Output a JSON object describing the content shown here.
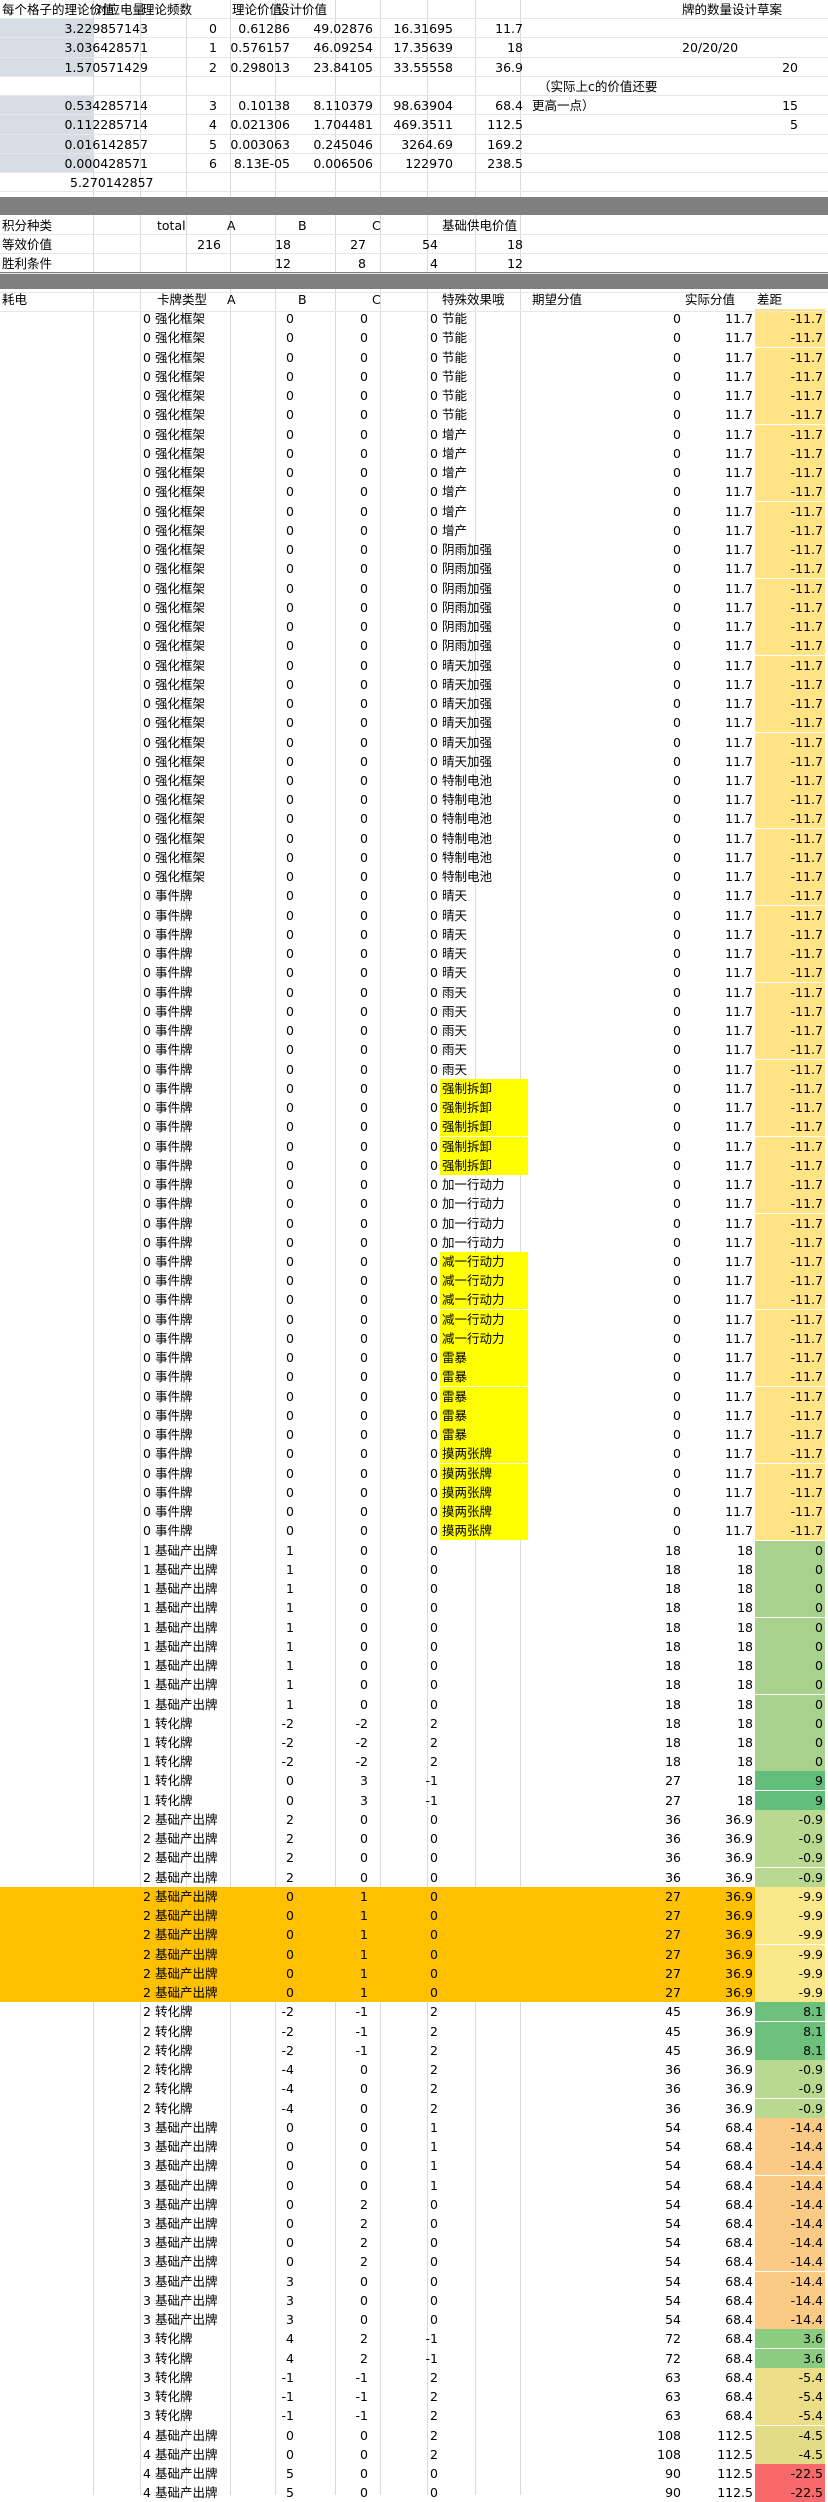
{
  "top": {
    "headers": [
      "每个格子的理论价值",
      "对应电量",
      "理论频数",
      "",
      "理论价值",
      "设计价值",
      "",
      "",
      "",
      "牌的数量设计草案"
    ],
    "rows": [
      [
        "3.229857143",
        "0",
        "0.61286",
        "49.02876",
        "16.31695",
        "11.7",
        "",
        "",
        "",
        ""
      ],
      [
        "3.036428571",
        "1",
        "0.576157",
        "46.09254",
        "17.35639",
        "18",
        "",
        "",
        "20/20/20",
        ""
      ],
      [
        "1.570571429",
        "2",
        "0.298013",
        "23.84105",
        "33.55558",
        "36.9",
        "",
        "",
        "",
        "20"
      ],
      [
        "",
        "",
        "",
        "",
        "",
        "",
        "",
        "",
        "",
        ""
      ],
      [
        "0.534285714",
        "3",
        "0.10138",
        "8.110379",
        "98.63904",
        "68.4",
        "",
        "",
        "",
        "15"
      ],
      [
        "0.112285714",
        "4",
        "0.021306",
        "1.704481",
        "469.3511",
        "112.5",
        "",
        "",
        "",
        "5"
      ],
      [
        "0.016142857",
        "5",
        "0.003063",
        "0.245046",
        "3264.69",
        "169.2",
        "",
        "",
        "",
        ""
      ],
      [
        "0.000428571",
        "6",
        "8.13E-05",
        "0.006506",
        "122970",
        "238.5",
        "",
        "",
        "",
        ""
      ],
      [
        "5.270142857",
        "",
        "",
        "",
        "",
        "",
        "",
        "",
        "",
        ""
      ]
    ],
    "note_line1": "（实际上c的价值还要",
    "note_line2": "更高一点）"
  },
  "mid": {
    "rows": [
      [
        "积分种类",
        "total",
        "A",
        "",
        "B",
        "C",
        "基础供电价值"
      ],
      [
        "等效价值",
        "216",
        "18",
        "",
        "27",
        "54",
        "18"
      ],
      [
        "胜利条件",
        "",
        "12",
        "",
        "8",
        "4",
        "12"
      ]
    ]
  },
  "main": {
    "headers": [
      "耗电",
      "卡牌类型",
      "A",
      "B",
      "C",
      "特殊效果哦",
      "期望分值",
      "实际分值",
      "差距"
    ],
    "rows": [
      [
        "0",
        "强化框架",
        "0",
        "0",
        "0",
        "节能",
        "0",
        "11.7",
        "-11.7"
      ],
      [
        "0",
        "强化框架",
        "0",
        "0",
        "0",
        "节能",
        "0",
        "11.7",
        "-11.7"
      ],
      [
        "0",
        "强化框架",
        "0",
        "0",
        "0",
        "节能",
        "0",
        "11.7",
        "-11.7"
      ],
      [
        "0",
        "强化框架",
        "0",
        "0",
        "0",
        "节能",
        "0",
        "11.7",
        "-11.7"
      ],
      [
        "0",
        "强化框架",
        "0",
        "0",
        "0",
        "节能",
        "0",
        "11.7",
        "-11.7"
      ],
      [
        "0",
        "强化框架",
        "0",
        "0",
        "0",
        "节能",
        "0",
        "11.7",
        "-11.7"
      ],
      [
        "0",
        "强化框架",
        "0",
        "0",
        "0",
        "增产",
        "0",
        "11.7",
        "-11.7"
      ],
      [
        "0",
        "强化框架",
        "0",
        "0",
        "0",
        "增产",
        "0",
        "11.7",
        "-11.7"
      ],
      [
        "0",
        "强化框架",
        "0",
        "0",
        "0",
        "增产",
        "0",
        "11.7",
        "-11.7"
      ],
      [
        "0",
        "强化框架",
        "0",
        "0",
        "0",
        "增产",
        "0",
        "11.7",
        "-11.7"
      ],
      [
        "0",
        "强化框架",
        "0",
        "0",
        "0",
        "增产",
        "0",
        "11.7",
        "-11.7"
      ],
      [
        "0",
        "强化框架",
        "0",
        "0",
        "0",
        "增产",
        "0",
        "11.7",
        "-11.7"
      ],
      [
        "0",
        "强化框架",
        "0",
        "0",
        "0",
        "阴雨加强",
        "0",
        "11.7",
        "-11.7"
      ],
      [
        "0",
        "强化框架",
        "0",
        "0",
        "0",
        "阴雨加强",
        "0",
        "11.7",
        "-11.7"
      ],
      [
        "0",
        "强化框架",
        "0",
        "0",
        "0",
        "阴雨加强",
        "0",
        "11.7",
        "-11.7"
      ],
      [
        "0",
        "强化框架",
        "0",
        "0",
        "0",
        "阴雨加强",
        "0",
        "11.7",
        "-11.7"
      ],
      [
        "0",
        "强化框架",
        "0",
        "0",
        "0",
        "阴雨加强",
        "0",
        "11.7",
        "-11.7"
      ],
      [
        "0",
        "强化框架",
        "0",
        "0",
        "0",
        "阴雨加强",
        "0",
        "11.7",
        "-11.7"
      ],
      [
        "0",
        "强化框架",
        "0",
        "0",
        "0",
        "晴天加强",
        "0",
        "11.7",
        "-11.7"
      ],
      [
        "0",
        "强化框架",
        "0",
        "0",
        "0",
        "晴天加强",
        "0",
        "11.7",
        "-11.7"
      ],
      [
        "0",
        "强化框架",
        "0",
        "0",
        "0",
        "晴天加强",
        "0",
        "11.7",
        "-11.7"
      ],
      [
        "0",
        "强化框架",
        "0",
        "0",
        "0",
        "晴天加强",
        "0",
        "11.7",
        "-11.7"
      ],
      [
        "0",
        "强化框架",
        "0",
        "0",
        "0",
        "晴天加强",
        "0",
        "11.7",
        "-11.7"
      ],
      [
        "0",
        "强化框架",
        "0",
        "0",
        "0",
        "晴天加强",
        "0",
        "11.7",
        "-11.7"
      ],
      [
        "0",
        "强化框架",
        "0",
        "0",
        "0",
        "特制电池",
        "0",
        "11.7",
        "-11.7"
      ],
      [
        "0",
        "强化框架",
        "0",
        "0",
        "0",
        "特制电池",
        "0",
        "11.7",
        "-11.7"
      ],
      [
        "0",
        "强化框架",
        "0",
        "0",
        "0",
        "特制电池",
        "0",
        "11.7",
        "-11.7"
      ],
      [
        "0",
        "强化框架",
        "0",
        "0",
        "0",
        "特制电池",
        "0",
        "11.7",
        "-11.7"
      ],
      [
        "0",
        "强化框架",
        "0",
        "0",
        "0",
        "特制电池",
        "0",
        "11.7",
        "-11.7"
      ],
      [
        "0",
        "强化框架",
        "0",
        "0",
        "0",
        "特制电池",
        "0",
        "11.7",
        "-11.7"
      ],
      [
        "0",
        "事件牌",
        "0",
        "0",
        "0",
        "晴天",
        "0",
        "11.7",
        "-11.7"
      ],
      [
        "0",
        "事件牌",
        "0",
        "0",
        "0",
        "晴天",
        "0",
        "11.7",
        "-11.7"
      ],
      [
        "0",
        "事件牌",
        "0",
        "0",
        "0",
        "晴天",
        "0",
        "11.7",
        "-11.7"
      ],
      [
        "0",
        "事件牌",
        "0",
        "0",
        "0",
        "晴天",
        "0",
        "11.7",
        "-11.7"
      ],
      [
        "0",
        "事件牌",
        "0",
        "0",
        "0",
        "晴天",
        "0",
        "11.7",
        "-11.7"
      ],
      [
        "0",
        "事件牌",
        "0",
        "0",
        "0",
        "雨天",
        "0",
        "11.7",
        "-11.7"
      ],
      [
        "0",
        "事件牌",
        "0",
        "0",
        "0",
        "雨天",
        "0",
        "11.7",
        "-11.7"
      ],
      [
        "0",
        "事件牌",
        "0",
        "0",
        "0",
        "雨天",
        "0",
        "11.7",
        "-11.7"
      ],
      [
        "0",
        "事件牌",
        "0",
        "0",
        "0",
        "雨天",
        "0",
        "11.7",
        "-11.7"
      ],
      [
        "0",
        "事件牌",
        "0",
        "0",
        "0",
        "雨天",
        "0",
        "11.7",
        "-11.7"
      ],
      [
        "0",
        "事件牌",
        "0",
        "0",
        "0",
        "强制拆卸",
        "0",
        "11.7",
        "-11.7"
      ],
      [
        "0",
        "事件牌",
        "0",
        "0",
        "0",
        "强制拆卸",
        "0",
        "11.7",
        "-11.7"
      ],
      [
        "0",
        "事件牌",
        "0",
        "0",
        "0",
        "强制拆卸",
        "0",
        "11.7",
        "-11.7"
      ],
      [
        "0",
        "事件牌",
        "0",
        "0",
        "0",
        "强制拆卸",
        "0",
        "11.7",
        "-11.7"
      ],
      [
        "0",
        "事件牌",
        "0",
        "0",
        "0",
        "强制拆卸",
        "0",
        "11.7",
        "-11.7"
      ],
      [
        "0",
        "事件牌",
        "0",
        "0",
        "0",
        "加一行动力",
        "0",
        "11.7",
        "-11.7"
      ],
      [
        "0",
        "事件牌",
        "0",
        "0",
        "0",
        "加一行动力",
        "0",
        "11.7",
        "-11.7"
      ],
      [
        "0",
        "事件牌",
        "0",
        "0",
        "0",
        "加一行动力",
        "0",
        "11.7",
        "-11.7"
      ],
      [
        "0",
        "事件牌",
        "0",
        "0",
        "0",
        "加一行动力",
        "0",
        "11.7",
        "-11.7"
      ],
      [
        "0",
        "事件牌",
        "0",
        "0",
        "0",
        "减一行动力",
        "0",
        "11.7",
        "-11.7"
      ],
      [
        "0",
        "事件牌",
        "0",
        "0",
        "0",
        "减一行动力",
        "0",
        "11.7",
        "-11.7"
      ],
      [
        "0",
        "事件牌",
        "0",
        "0",
        "0",
        "减一行动力",
        "0",
        "11.7",
        "-11.7"
      ],
      [
        "0",
        "事件牌",
        "0",
        "0",
        "0",
        "减一行动力",
        "0",
        "11.7",
        "-11.7"
      ],
      [
        "0",
        "事件牌",
        "0",
        "0",
        "0",
        "减一行动力",
        "0",
        "11.7",
        "-11.7"
      ],
      [
        "0",
        "事件牌",
        "0",
        "0",
        "0",
        "雷暴",
        "0",
        "11.7",
        "-11.7"
      ],
      [
        "0",
        "事件牌",
        "0",
        "0",
        "0",
        "雷暴",
        "0",
        "11.7",
        "-11.7"
      ],
      [
        "0",
        "事件牌",
        "0",
        "0",
        "0",
        "雷暴",
        "0",
        "11.7",
        "-11.7"
      ],
      [
        "0",
        "事件牌",
        "0",
        "0",
        "0",
        "雷暴",
        "0",
        "11.7",
        "-11.7"
      ],
      [
        "0",
        "事件牌",
        "0",
        "0",
        "0",
        "雷暴",
        "0",
        "11.7",
        "-11.7"
      ],
      [
        "0",
        "事件牌",
        "0",
        "0",
        "0",
        "摸两张牌",
        "0",
        "11.7",
        "-11.7"
      ],
      [
        "0",
        "事件牌",
        "0",
        "0",
        "0",
        "摸两张牌",
        "0",
        "11.7",
        "-11.7"
      ],
      [
        "0",
        "事件牌",
        "0",
        "0",
        "0",
        "摸两张牌",
        "0",
        "11.7",
        "-11.7"
      ],
      [
        "0",
        "事件牌",
        "0",
        "0",
        "0",
        "摸两张牌",
        "0",
        "11.7",
        "-11.7"
      ],
      [
        "0",
        "事件牌",
        "0",
        "0",
        "0",
        "摸两张牌",
        "0",
        "11.7",
        "-11.7"
      ],
      [
        "1",
        "基础产出牌",
        "1",
        "0",
        "0",
        "",
        "18",
        "18",
        "0"
      ],
      [
        "1",
        "基础产出牌",
        "1",
        "0",
        "0",
        "",
        "18",
        "18",
        "0"
      ],
      [
        "1",
        "基础产出牌",
        "1",
        "0",
        "0",
        "",
        "18",
        "18",
        "0"
      ],
      [
        "1",
        "基础产出牌",
        "1",
        "0",
        "0",
        "",
        "18",
        "18",
        "0"
      ],
      [
        "1",
        "基础产出牌",
        "1",
        "0",
        "0",
        "",
        "18",
        "18",
        "0"
      ],
      [
        "1",
        "基础产出牌",
        "1",
        "0",
        "0",
        "",
        "18",
        "18",
        "0"
      ],
      [
        "1",
        "基础产出牌",
        "1",
        "0",
        "0",
        "",
        "18",
        "18",
        "0"
      ],
      [
        "1",
        "基础产出牌",
        "1",
        "0",
        "0",
        "",
        "18",
        "18",
        "0"
      ],
      [
        "1",
        "基础产出牌",
        "1",
        "0",
        "0",
        "",
        "18",
        "18",
        "0"
      ],
      [
        "1",
        "转化牌",
        "-2",
        "-2",
        "2",
        "",
        "18",
        "18",
        "0"
      ],
      [
        "1",
        "转化牌",
        "-2",
        "-2",
        "2",
        "",
        "18",
        "18",
        "0"
      ],
      [
        "1",
        "转化牌",
        "-2",
        "-2",
        "2",
        "",
        "18",
        "18",
        "0"
      ],
      [
        "1",
        "转化牌",
        "0",
        "3",
        "-1",
        "",
        "27",
        "18",
        "9"
      ],
      [
        "1",
        "转化牌",
        "0",
        "3",
        "-1",
        "",
        "27",
        "18",
        "9"
      ],
      [
        "2",
        "基础产出牌",
        "2",
        "0",
        "0",
        "",
        "36",
        "36.9",
        "-0.9"
      ],
      [
        "2",
        "基础产出牌",
        "2",
        "0",
        "0",
        "",
        "36",
        "36.9",
        "-0.9"
      ],
      [
        "2",
        "基础产出牌",
        "2",
        "0",
        "0",
        "",
        "36",
        "36.9",
        "-0.9"
      ],
      [
        "2",
        "基础产出牌",
        "2",
        "0",
        "0",
        "",
        "36",
        "36.9",
        "-0.9"
      ],
      [
        "2",
        "基础产出牌",
        "0",
        "1",
        "0",
        "",
        "27",
        "36.9",
        "-9.9"
      ],
      [
        "2",
        "基础产出牌",
        "0",
        "1",
        "0",
        "",
        "27",
        "36.9",
        "-9.9"
      ],
      [
        "2",
        "基础产出牌",
        "0",
        "1",
        "0",
        "",
        "27",
        "36.9",
        "-9.9"
      ],
      [
        "2",
        "基础产出牌",
        "0",
        "1",
        "0",
        "",
        "27",
        "36.9",
        "-9.9"
      ],
      [
        "2",
        "基础产出牌",
        "0",
        "1",
        "0",
        "",
        "27",
        "36.9",
        "-9.9"
      ],
      [
        "2",
        "基础产出牌",
        "0",
        "1",
        "0",
        "",
        "27",
        "36.9",
        "-9.9"
      ],
      [
        "2",
        "转化牌",
        "-2",
        "-1",
        "2",
        "",
        "45",
        "36.9",
        "8.1"
      ],
      [
        "2",
        "转化牌",
        "-2",
        "-1",
        "2",
        "",
        "45",
        "36.9",
        "8.1"
      ],
      [
        "2",
        "转化牌",
        "-2",
        "-1",
        "2",
        "",
        "45",
        "36.9",
        "8.1"
      ],
      [
        "2",
        "转化牌",
        "-4",
        "0",
        "2",
        "",
        "36",
        "36.9",
        "-0.9"
      ],
      [
        "2",
        "转化牌",
        "-4",
        "0",
        "2",
        "",
        "36",
        "36.9",
        "-0.9"
      ],
      [
        "2",
        "转化牌",
        "-4",
        "0",
        "2",
        "",
        "36",
        "36.9",
        "-0.9"
      ],
      [
        "3",
        "基础产出牌",
        "0",
        "0",
        "1",
        "",
        "54",
        "68.4",
        "-14.4"
      ],
      [
        "3",
        "基础产出牌",
        "0",
        "0",
        "1",
        "",
        "54",
        "68.4",
        "-14.4"
      ],
      [
        "3",
        "基础产出牌",
        "0",
        "0",
        "1",
        "",
        "54",
        "68.4",
        "-14.4"
      ],
      [
        "3",
        "基础产出牌",
        "0",
        "0",
        "1",
        "",
        "54",
        "68.4",
        "-14.4"
      ],
      [
        "3",
        "基础产出牌",
        "0",
        "2",
        "0",
        "",
        "54",
        "68.4",
        "-14.4"
      ],
      [
        "3",
        "基础产出牌",
        "0",
        "2",
        "0",
        "",
        "54",
        "68.4",
        "-14.4"
      ],
      [
        "3",
        "基础产出牌",
        "0",
        "2",
        "0",
        "",
        "54",
        "68.4",
        "-14.4"
      ],
      [
        "3",
        "基础产出牌",
        "0",
        "2",
        "0",
        "",
        "54",
        "68.4",
        "-14.4"
      ],
      [
        "3",
        "基础产出牌",
        "3",
        "0",
        "0",
        "",
        "54",
        "68.4",
        "-14.4"
      ],
      [
        "3",
        "基础产出牌",
        "3",
        "0",
        "0",
        "",
        "54",
        "68.4",
        "-14.4"
      ],
      [
        "3",
        "基础产出牌",
        "3",
        "0",
        "0",
        "",
        "54",
        "68.4",
        "-14.4"
      ],
      [
        "3",
        "转化牌",
        "4",
        "2",
        "-1",
        "",
        "72",
        "68.4",
        "3.6"
      ],
      [
        "3",
        "转化牌",
        "4",
        "2",
        "-1",
        "",
        "72",
        "68.4",
        "3.6"
      ],
      [
        "3",
        "转化牌",
        "-1",
        "-1",
        "2",
        "",
        "63",
        "68.4",
        "-5.4"
      ],
      [
        "3",
        "转化牌",
        "-1",
        "-1",
        "2",
        "",
        "63",
        "68.4",
        "-5.4"
      ],
      [
        "3",
        "转化牌",
        "-1",
        "-1",
        "2",
        "",
        "63",
        "68.4",
        "-5.4"
      ],
      [
        "4",
        "基础产出牌",
        "0",
        "0",
        "2",
        "",
        "108",
        "112.5",
        "-4.5"
      ],
      [
        "4",
        "基础产出牌",
        "0",
        "0",
        "2",
        "",
        "108",
        "112.5",
        "-4.5"
      ],
      [
        "4",
        "基础产出牌",
        "5",
        "0",
        "0",
        "",
        "90",
        "112.5",
        "-22.5"
      ],
      [
        "4",
        "基础产出牌",
        "5",
        "0",
        "0",
        "",
        "90",
        "112.5",
        "-22.5"
      ]
    ],
    "colors": {
      "yellow": "#ffff00",
      "orange": "#ffc000",
      "diff_neg11_7": "#ffe385",
      "diff_zero": "#a9d18e",
      "diff_9": "#63be7b",
      "diff_neg0_9": "#b8d98f",
      "diff_neg9_9": "#fbe88a",
      "diff_8_1": "#6cc07c",
      "diff_neg14_4": "#fbcb86",
      "diff_3_6": "#8ccc81",
      "diff_neg5_4": "#ecdd88",
      "diff_neg4_5": "#e3dc87",
      "diff_neg22_5": "#f8696b",
      "band": "#7f7f7f"
    }
  }
}
